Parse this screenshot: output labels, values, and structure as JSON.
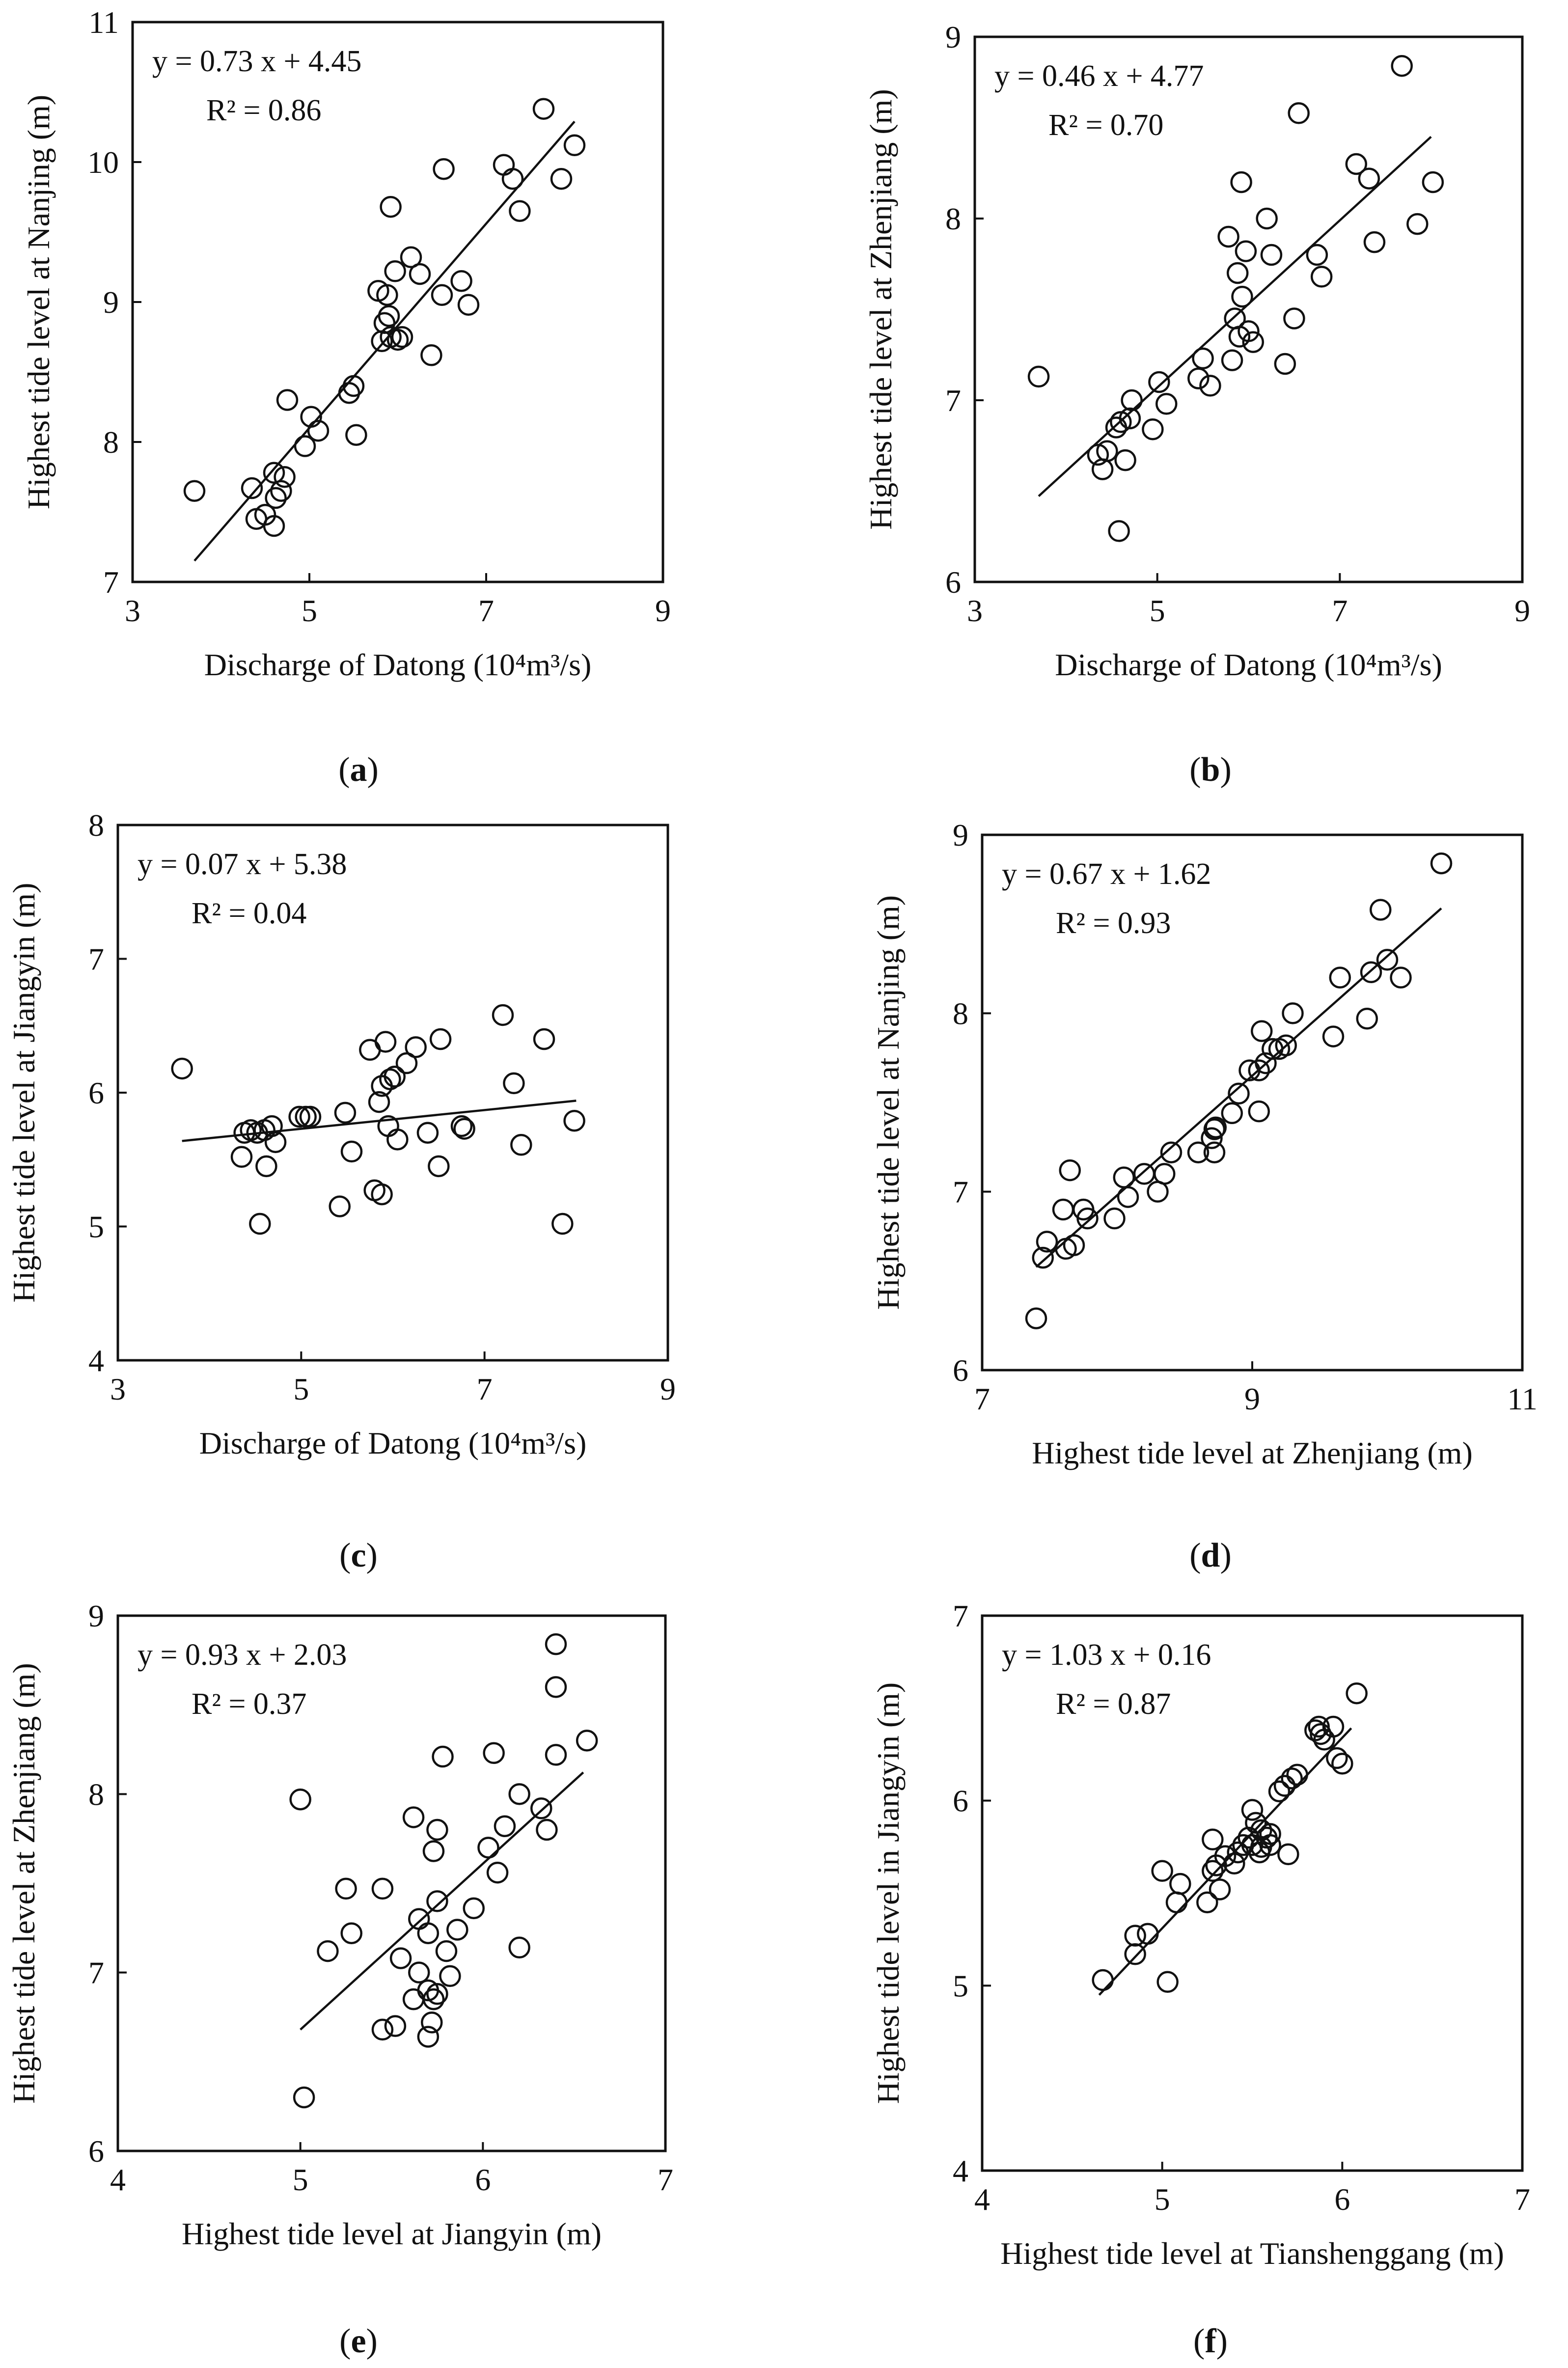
{
  "chart_data": [
    {
      "id": "a",
      "type": "scatter",
      "panel_label": "a",
      "xlabel": "Discharge of Datong (10⁴m³/s)",
      "ylabel": "Highest tide level at Nanjing (m)",
      "xlim": [
        3,
        9
      ],
      "ylim": [
        7,
        11
      ],
      "xticks": [
        3,
        5,
        7,
        9
      ],
      "yticks": [
        7,
        8,
        9,
        10,
        11
      ],
      "equation": "y = 0.73 x + 4.45",
      "r2": "R² = 0.86",
      "fit": {
        "slope": 0.73,
        "intercept": 4.45,
        "x_range": [
          3.7,
          8.0
        ]
      },
      "points": [
        [
          3.7,
          7.65
        ],
        [
          4.35,
          7.67
        ],
        [
          4.4,
          7.45
        ],
        [
          4.5,
          7.48
        ],
        [
          4.6,
          7.78
        ],
        [
          4.6,
          7.4
        ],
        [
          4.62,
          7.6
        ],
        [
          4.68,
          7.65
        ],
        [
          4.72,
          7.75
        ],
        [
          4.75,
          8.3
        ],
        [
          4.95,
          7.97
        ],
        [
          5.02,
          8.18
        ],
        [
          5.1,
          8.08
        ],
        [
          5.45,
          8.35
        ],
        [
          5.5,
          8.4
        ],
        [
          5.53,
          8.05
        ],
        [
          5.78,
          9.08
        ],
        [
          5.82,
          8.72
        ],
        [
          5.85,
          8.85
        ],
        [
          5.88,
          9.05
        ],
        [
          5.9,
          8.9
        ],
        [
          5.92,
          8.75
        ],
        [
          5.92,
          9.68
        ],
        [
          5.97,
          9.22
        ],
        [
          6.0,
          8.73
        ],
        [
          6.05,
          8.75
        ],
        [
          6.15,
          9.32
        ],
        [
          6.25,
          9.2
        ],
        [
          6.38,
          8.62
        ],
        [
          6.5,
          9.05
        ],
        [
          6.52,
          9.95
        ],
        [
          6.72,
          9.15
        ],
        [
          6.8,
          8.98
        ],
        [
          7.2,
          9.98
        ],
        [
          7.3,
          9.88
        ],
        [
          7.38,
          9.65
        ],
        [
          7.65,
          10.38
        ],
        [
          7.85,
          9.88
        ],
        [
          8.0,
          10.12
        ]
      ]
    },
    {
      "id": "b",
      "type": "scatter",
      "panel_label": "b",
      "xlabel": "Discharge of Datong (10⁴m³/s)",
      "ylabel": "Highest tide level at Zhenjiang (m)",
      "xlim": [
        3,
        9
      ],
      "ylim": [
        6,
        9
      ],
      "xticks": [
        3,
        5,
        7,
        9
      ],
      "yticks": [
        6,
        7,
        8,
        9
      ],
      "equation": "y = 0.46 x + 4.77",
      "r2": "R² = 0.70",
      "fit": {
        "slope": 0.46,
        "intercept": 4.77,
        "x_range": [
          3.7,
          8.0
        ]
      },
      "points": [
        [
          3.7,
          7.13
        ],
        [
          4.35,
          6.7
        ],
        [
          4.4,
          6.62
        ],
        [
          4.45,
          6.72
        ],
        [
          4.55,
          6.85
        ],
        [
          4.58,
          6.28
        ],
        [
          4.6,
          6.88
        ],
        [
          4.65,
          6.67
        ],
        [
          4.7,
          6.9
        ],
        [
          4.72,
          7.0
        ],
        [
          4.95,
          6.84
        ],
        [
          5.02,
          7.1
        ],
        [
          5.1,
          6.98
        ],
        [
          5.45,
          7.12
        ],
        [
          5.5,
          7.23
        ],
        [
          5.58,
          7.08
        ],
        [
          5.78,
          7.9
        ],
        [
          5.82,
          7.22
        ],
        [
          5.85,
          7.45
        ],
        [
          5.88,
          7.7
        ],
        [
          5.9,
          7.35
        ],
        [
          5.92,
          8.2
        ],
        [
          5.93,
          7.57
        ],
        [
          5.97,
          7.82
        ],
        [
          6.0,
          7.38
        ],
        [
          6.05,
          7.32
        ],
        [
          6.2,
          8.0
        ],
        [
          6.25,
          7.8
        ],
        [
          6.4,
          7.2
        ],
        [
          6.5,
          7.45
        ],
        [
          6.55,
          8.58
        ],
        [
          6.75,
          7.8
        ],
        [
          6.8,
          7.68
        ],
        [
          7.18,
          8.3
        ],
        [
          7.32,
          8.22
        ],
        [
          7.38,
          7.87
        ],
        [
          7.68,
          8.84
        ],
        [
          7.85,
          7.97
        ],
        [
          8.02,
          8.2
        ]
      ]
    },
    {
      "id": "c",
      "type": "scatter",
      "panel_label": "c",
      "xlabel": "Discharge of Datong (10⁴m³/s)",
      "ylabel": "Highest tide level at Jiangyin (m)",
      "xlim": [
        3,
        9
      ],
      "ylim": [
        4,
        8
      ],
      "xticks": [
        3,
        5,
        7,
        9
      ],
      "yticks": [
        4,
        5,
        6,
        7,
        8
      ],
      "equation": "y = 0.07 x + 5.38",
      "r2": "R² = 0.04",
      "fit": {
        "slope": 0.07,
        "intercept": 5.38,
        "x_range": [
          3.7,
          8.0
        ]
      },
      "points": [
        [
          3.7,
          6.18
        ],
        [
          4.35,
          5.52
        ],
        [
          4.38,
          5.7
        ],
        [
          4.45,
          5.72
        ],
        [
          4.52,
          5.7
        ],
        [
          4.55,
          5.02
        ],
        [
          4.6,
          5.72
        ],
        [
          4.62,
          5.45
        ],
        [
          4.68,
          5.75
        ],
        [
          4.72,
          5.63
        ],
        [
          4.98,
          5.82
        ],
        [
          5.05,
          5.82
        ],
        [
          5.1,
          5.82
        ],
        [
          5.42,
          5.15
        ],
        [
          5.48,
          5.85
        ],
        [
          5.55,
          5.56
        ],
        [
          5.75,
          6.32
        ],
        [
          5.8,
          5.27
        ],
        [
          5.85,
          5.93
        ],
        [
          5.88,
          5.24
        ],
        [
          5.88,
          6.05
        ],
        [
          5.92,
          6.38
        ],
        [
          5.95,
          5.75
        ],
        [
          5.97,
          6.1
        ],
        [
          6.02,
          6.12
        ],
        [
          6.05,
          5.65
        ],
        [
          6.15,
          6.22
        ],
        [
          6.25,
          6.34
        ],
        [
          6.38,
          5.7
        ],
        [
          6.5,
          5.45
        ],
        [
          6.52,
          6.4
        ],
        [
          6.75,
          5.75
        ],
        [
          6.78,
          5.73
        ],
        [
          7.2,
          6.58
        ],
        [
          7.32,
          6.07
        ],
        [
          7.4,
          5.61
        ],
        [
          7.65,
          6.4
        ],
        [
          7.85,
          5.02
        ],
        [
          7.98,
          5.79
        ]
      ]
    },
    {
      "id": "d",
      "type": "scatter",
      "panel_label": "d",
      "xlabel": "Highest tide level at Zhenjiang (m)",
      "ylabel": "Highest tide level at Nanjing (m)",
      "xlim": [
        7,
        11
      ],
      "ylim": [
        6,
        9
      ],
      "xticks": [
        7,
        9,
        11
      ],
      "yticks": [
        6,
        7,
        8,
        9
      ],
      "equation": "y = 0.67 x + 1.62",
      "r2": "R² = 0.93",
      "fit": {
        "slope": 0.67,
        "intercept": 1.62,
        "x_range": [
          7.4,
          10.4
        ]
      },
      "points": [
        [
          7.4,
          6.29
        ],
        [
          7.45,
          6.63
        ],
        [
          7.48,
          6.72
        ],
        [
          7.6,
          6.9
        ],
        [
          7.62,
          6.68
        ],
        [
          7.65,
          7.12
        ],
        [
          7.68,
          6.7
        ],
        [
          7.75,
          6.9
        ],
        [
          7.78,
          6.85
        ],
        [
          7.98,
          6.85
        ],
        [
          8.05,
          7.08
        ],
        [
          8.08,
          6.97
        ],
        [
          8.2,
          7.1
        ],
        [
          8.3,
          7.0
        ],
        [
          8.35,
          7.1
        ],
        [
          8.4,
          7.22
        ],
        [
          8.6,
          7.22
        ],
        [
          8.7,
          7.3
        ],
        [
          8.72,
          7.22
        ],
        [
          8.72,
          7.35
        ],
        [
          8.73,
          7.36
        ],
        [
          8.85,
          7.44
        ],
        [
          8.9,
          7.55
        ],
        [
          8.98,
          7.68
        ],
        [
          9.05,
          7.45
        ],
        [
          9.05,
          7.68
        ],
        [
          9.07,
          7.9
        ],
        [
          9.1,
          7.72
        ],
        [
          9.15,
          7.8
        ],
        [
          9.2,
          7.8
        ],
        [
          9.25,
          7.82
        ],
        [
          9.3,
          8.0
        ],
        [
          9.6,
          7.87
        ],
        [
          9.65,
          8.2
        ],
        [
          9.85,
          7.97
        ],
        [
          9.88,
          8.23
        ],
        [
          9.95,
          8.58
        ],
        [
          10.0,
          8.3
        ],
        [
          10.1,
          8.2
        ],
        [
          10.4,
          8.84
        ]
      ]
    },
    {
      "id": "e",
      "type": "scatter",
      "panel_label": "e",
      "xlabel": "Highest tide level at Jiangyin (m)",
      "ylabel": "Highest tide level at Zhenjiang (m)",
      "xlim": [
        4,
        7
      ],
      "ylim": [
        6,
        9
      ],
      "xticks": [
        4,
        5,
        6,
        7
      ],
      "yticks": [
        6,
        7,
        8,
        9
      ],
      "equation": "y = 0.93 x + 2.03",
      "r2": "R² = 0.37",
      "fit": {
        "slope": 0.93,
        "intercept": 2.03,
        "x_range": [
          5.0,
          6.55
        ]
      },
      "points": [
        [
          5.0,
          7.97
        ],
        [
          5.02,
          6.3
        ],
        [
          5.15,
          7.12
        ],
        [
          5.25,
          7.47
        ],
        [
          5.28,
          7.22
        ],
        [
          5.45,
          7.47
        ],
        [
          5.45,
          6.68
        ],
        [
          5.52,
          6.7
        ],
        [
          5.55,
          7.08
        ],
        [
          5.62,
          6.85
        ],
        [
          5.62,
          7.87
        ],
        [
          5.65,
          7.3
        ],
        [
          5.65,
          7.0
        ],
        [
          5.7,
          7.22
        ],
        [
          5.7,
          6.9
        ],
        [
          5.7,
          6.64
        ],
        [
          5.72,
          6.72
        ],
        [
          5.73,
          7.68
        ],
        [
          5.73,
          6.85
        ],
        [
          5.75,
          7.8
        ],
        [
          5.75,
          6.88
        ],
        [
          5.75,
          7.4
        ],
        [
          5.78,
          8.21
        ],
        [
          5.8,
          7.12
        ],
        [
          5.82,
          6.98
        ],
        [
          5.86,
          7.24
        ],
        [
          5.95,
          7.36
        ],
        [
          6.03,
          7.7
        ],
        [
          6.06,
          8.23
        ],
        [
          6.08,
          7.56
        ],
        [
          6.12,
          7.82
        ],
        [
          6.2,
          7.14
        ],
        [
          6.2,
          8.0
        ],
        [
          6.32,
          7.92
        ],
        [
          6.35,
          7.8
        ],
        [
          6.4,
          8.84
        ],
        [
          6.4,
          8.22
        ],
        [
          6.4,
          8.6
        ],
        [
          6.57,
          8.3
        ]
      ]
    },
    {
      "id": "f",
      "type": "scatter",
      "panel_label": "f",
      "xlabel": "Highest tide level at Tianshenggang (m)",
      "ylabel": "Highest tide level in Jiangyin (m)",
      "xlim": [
        4,
        7
      ],
      "ylim": [
        4,
        7
      ],
      "xticks": [
        4,
        5,
        6,
        7
      ],
      "yticks": [
        4,
        5,
        6,
        7
      ],
      "equation": "y = 1.03 x + 0.16",
      "r2": "R² = 0.87",
      "fit": {
        "slope": 1.03,
        "intercept": 0.16,
        "x_range": [
          4.65,
          6.05
        ]
      },
      "points": [
        [
          4.67,
          5.03
        ],
        [
          4.85,
          5.17
        ],
        [
          4.85,
          5.27
        ],
        [
          4.92,
          5.28
        ],
        [
          5.0,
          5.62
        ],
        [
          5.03,
          5.02
        ],
        [
          5.08,
          5.45
        ],
        [
          5.1,
          5.55
        ],
        [
          5.25,
          5.45
        ],
        [
          5.28,
          5.62
        ],
        [
          5.28,
          5.79
        ],
        [
          5.3,
          5.65
        ],
        [
          5.32,
          5.52
        ],
        [
          5.35,
          5.7
        ],
        [
          5.4,
          5.66
        ],
        [
          5.42,
          5.72
        ],
        [
          5.45,
          5.76
        ],
        [
          5.48,
          5.8
        ],
        [
          5.5,
          5.95
        ],
        [
          5.5,
          5.76
        ],
        [
          5.52,
          5.88
        ],
        [
          5.54,
          5.72
        ],
        [
          5.55,
          5.84
        ],
        [
          5.55,
          5.75
        ],
        [
          5.58,
          5.8
        ],
        [
          5.6,
          5.82
        ],
        [
          5.6,
          5.76
        ],
        [
          5.65,
          6.05
        ],
        [
          5.68,
          6.08
        ],
        [
          5.7,
          5.71
        ],
        [
          5.72,
          6.12
        ],
        [
          5.75,
          6.14
        ],
        [
          5.85,
          6.38
        ],
        [
          5.87,
          6.4
        ],
        [
          5.88,
          6.36
        ],
        [
          5.9,
          6.33
        ],
        [
          5.95,
          6.4
        ],
        [
          5.97,
          6.23
        ],
        [
          6.0,
          6.2
        ],
        [
          6.08,
          6.58
        ]
      ]
    }
  ]
}
